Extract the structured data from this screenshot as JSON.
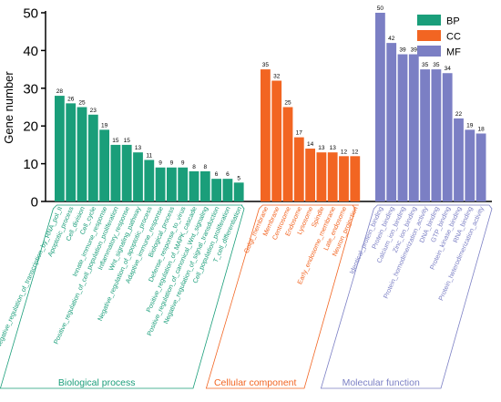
{
  "chart_data": {
    "type": "bar",
    "ylabel": "Gene number",
    "ylim": [
      0,
      50
    ],
    "yticks": [
      0,
      10,
      20,
      30,
      40,
      50
    ],
    "grid": false,
    "legend_position": "top-right",
    "groups": [
      {
        "name": "BP",
        "full_name": "Biological process",
        "color": "#1a9e7a",
        "categories": [
          "Negative_regulation_of_transcription_by_RNA_pol_II",
          "Apoptotic_process",
          "Cell_division",
          "Cell_cycle",
          "Innate_immune_response",
          "Positive_regulation_of_cell_population_proliferation",
          "Inflammatory_response",
          "Wnt_signaling_pathway",
          "Negative_regulation_of_apoptotic_process",
          "Adaptive_immune_response",
          "Biological_process",
          "Defense_response_to_virus",
          "Positive_regulation_of_MAPK_cascade",
          "Positive_regulation_of_canonical_Wnt_signaling",
          "Negative_regulation_of_signal_transduction",
          "Cell_population_proliferation",
          "T_cell_differentiation"
        ],
        "values": [
          28,
          26,
          25,
          23,
          19,
          15,
          15,
          13,
          11,
          9,
          9,
          9,
          8,
          8,
          6,
          6,
          5
        ]
      },
      {
        "name": "CC",
        "full_name": "Cellular component",
        "color": "#f26522",
        "categories": [
          "Golgi_membrane",
          "Membrane",
          "Centrosome",
          "Endosome",
          "Lysosome",
          "Spindle",
          "Early_endosome_membrane",
          "Late_endosome",
          "Neuron_projection"
        ],
        "values": [
          35,
          32,
          25,
          17,
          14,
          13,
          13,
          12,
          12
        ]
      },
      {
        "name": "MF",
        "full_name": "Molecular function",
        "color": "#7b7fc4",
        "categories": [
          "Identical_protein_binding",
          "Protein_binding",
          "Calcium_ion_binding",
          "Zinc_ion_binding",
          "Protein_homodimerization_activity",
          "DNA_binding",
          "GTP_binding",
          "Protein_kinase_binding",
          "RNA_binding",
          "Protein_heterodimerization_activity"
        ],
        "values": [
          50,
          42,
          39,
          39,
          35,
          35,
          34,
          22,
          19,
          18
        ]
      }
    ]
  }
}
